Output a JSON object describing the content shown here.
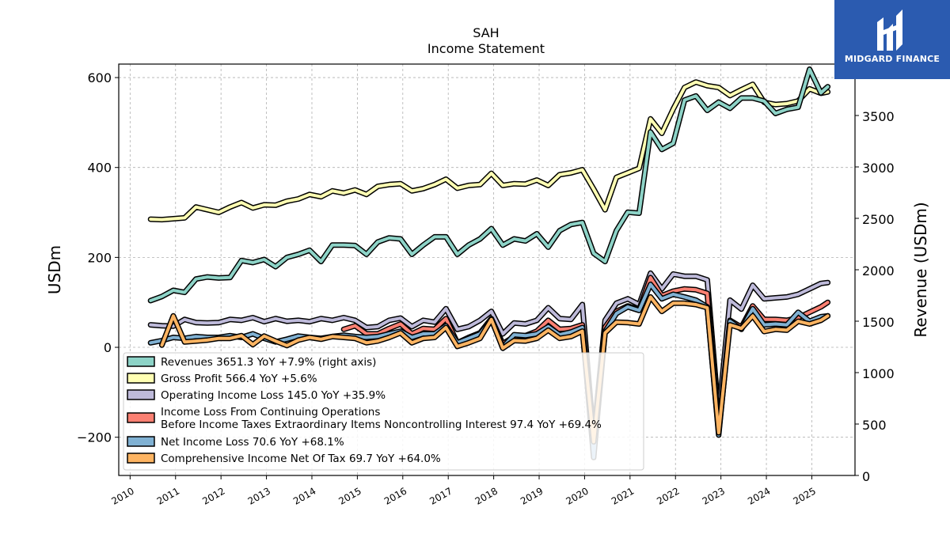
{
  "brand": {
    "name": "MIDGARD FINANCE"
  },
  "colors": {
    "revenues": "#8dd3c7",
    "gross_profit": "#ffffb3",
    "operating_income": "#bebada",
    "income_continuing": "#fb8072",
    "net_income": "#80b1d3",
    "comprehensive_income": "#fdb462"
  },
  "chart_data": {
    "type": "line",
    "title": "SAH",
    "subtitle": "Income Statement",
    "ylabel": "USDm",
    "ylabel_right": "Revenue (USDm)",
    "ylim": [
      -285,
      630
    ],
    "ylim_right": [
      0,
      4000
    ],
    "yticks": [
      -200,
      0,
      200,
      400,
      600
    ],
    "yticks_labels": [
      "−200",
      "0",
      "200",
      "400",
      "600"
    ],
    "yticks_right": [
      0,
      500,
      1000,
      1500,
      2000,
      2500,
      3000,
      3500
    ],
    "xlim": [
      2009.75,
      2025.95
    ],
    "xticks": [
      2010,
      2011,
      2012,
      2013,
      2014,
      2015,
      2016,
      2017,
      2018,
      2019,
      2020,
      2021,
      2022,
      2023,
      2024,
      2025
    ],
    "grid": true,
    "legend_position": "lower-left",
    "series": [
      {
        "key": "revenues",
        "name": "Revenues",
        "legend": "Revenues  3651.3 YoY +7.9% (right axis)",
        "axis": "right",
        "x": [
          2010.45,
          2010.7,
          2010.95,
          2011.2,
          2011.45,
          2011.7,
          2011.95,
          2012.2,
          2012.45,
          2012.7,
          2012.95,
          2013.2,
          2013.45,
          2013.7,
          2013.95,
          2014.2,
          2014.45,
          2014.7,
          2014.95,
          2015.2,
          2015.45,
          2015.7,
          2015.95,
          2016.2,
          2016.45,
          2016.7,
          2016.95,
          2017.2,
          2017.45,
          2017.7,
          2017.95,
          2018.2,
          2018.45,
          2018.7,
          2018.95,
          2019.2,
          2019.45,
          2019.7,
          2019.95,
          2020.2,
          2020.45,
          2020.7,
          2020.95,
          2021.2,
          2021.45,
          2021.7,
          2021.95,
          2022.2,
          2022.45,
          2022.7,
          2022.95,
          2023.2,
          2023.45,
          2023.7,
          2023.95,
          2024.2,
          2024.45,
          2024.7,
          2024.95,
          2025.2,
          2025.35
        ],
        "values": [
          1700,
          1740,
          1800,
          1780,
          1910,
          1930,
          1920,
          1925,
          2090,
          2070,
          2100,
          2030,
          2120,
          2150,
          2190,
          2080,
          2240,
          2240,
          2235,
          2150,
          2270,
          2310,
          2300,
          2150,
          2240,
          2320,
          2320,
          2150,
          2240,
          2300,
          2400,
          2240,
          2300,
          2280,
          2350,
          2220,
          2380,
          2440,
          2460,
          2160,
          2080,
          2380,
          2560,
          2550,
          3340,
          3170,
          3230,
          3650,
          3690,
          3550,
          3630,
          3570,
          3670,
          3670,
          3640,
          3520,
          3560,
          3580,
          3950,
          3720,
          3780
        ]
      },
      {
        "key": "gross_profit",
        "name": "Gross Profit",
        "legend": "Gross Profit  566.4 YoY +5.6%",
        "axis": "left",
        "x": [
          2010.45,
          2010.7,
          2010.95,
          2011.2,
          2011.45,
          2011.7,
          2011.95,
          2012.2,
          2012.45,
          2012.7,
          2012.95,
          2013.2,
          2013.45,
          2013.7,
          2013.95,
          2014.2,
          2014.45,
          2014.7,
          2014.95,
          2015.2,
          2015.45,
          2015.7,
          2015.95,
          2016.2,
          2016.45,
          2016.7,
          2016.95,
          2017.2,
          2017.45,
          2017.7,
          2017.95,
          2018.2,
          2018.45,
          2018.7,
          2018.95,
          2019.2,
          2019.45,
          2019.7,
          2019.95,
          2020.2,
          2020.45,
          2020.7,
          2020.95,
          2021.2,
          2021.45,
          2021.7,
          2021.95,
          2022.2,
          2022.45,
          2022.7,
          2022.95,
          2023.2,
          2023.45,
          2023.7,
          2023.95,
          2024.2,
          2024.45,
          2024.7,
          2024.95,
          2025.2,
          2025.35
        ],
        "values": [
          285,
          284,
          286,
          288,
          312,
          306,
          300,
          312,
          322,
          310,
          317,
          316,
          325,
          330,
          340,
          335,
          348,
          343,
          350,
          340,
          358,
          362,
          364,
          348,
          353,
          362,
          374,
          354,
          360,
          362,
          387,
          360,
          364,
          363,
          372,
          360,
          384,
          388,
          395,
          352,
          306,
          378,
          388,
          398,
          508,
          476,
          530,
          578,
          590,
          582,
          578,
          560,
          573,
          585,
          545,
          540,
          542,
          548,
          575,
          565,
          568
        ]
      },
      {
        "key": "operating_income",
        "name": "Operating Income Loss",
        "legend": "Operating Income Loss  145.0 YoY +35.9%",
        "axis": "left",
        "x": [
          2010.45,
          2010.7,
          2010.95,
          2011.2,
          2011.45,
          2011.7,
          2011.95,
          2012.2,
          2012.45,
          2012.7,
          2012.95,
          2013.2,
          2013.45,
          2013.7,
          2013.95,
          2014.2,
          2014.45,
          2014.7,
          2014.95,
          2015.2,
          2015.45,
          2015.7,
          2015.95,
          2016.2,
          2016.45,
          2016.7,
          2016.95,
          2017.2,
          2017.45,
          2017.7,
          2017.95,
          2018.2,
          2018.45,
          2018.7,
          2018.95,
          2019.2,
          2019.45,
          2019.7,
          2019.95,
          2020.2,
          2020.45,
          2020.7,
          2020.95,
          2021.2,
          2021.45,
          2021.7,
          2021.95,
          2022.2,
          2022.45,
          2022.7,
          2022.95,
          2023.2,
          2023.45,
          2023.7,
          2023.95,
          2024.2,
          2024.45,
          2024.7,
          2024.95,
          2025.2,
          2025.35
        ],
        "values": [
          50,
          48,
          47,
          62,
          55,
          54,
          55,
          62,
          60,
          66,
          57,
          64,
          58,
          60,
          57,
          64,
          60,
          66,
          60,
          44,
          46,
          60,
          65,
          46,
          60,
          56,
          86,
          40,
          46,
          60,
          80,
          30,
          54,
          52,
          60,
          88,
          64,
          62,
          95,
          -200,
          60,
          98,
          108,
          95,
          165,
          130,
          163,
          158,
          158,
          150,
          -150,
          105,
          85,
          138,
          108,
          110,
          112,
          118,
          130,
          142,
          144
        ]
      },
      {
        "key": "income_continuing",
        "name": "Income Loss From Continuing Operations",
        "legend": "Income Loss From Continuing Operations",
        "legend2": "Before Income Taxes Extraordinary Items Noncontrolling Interest  97.4 YoY +69.4%",
        "axis": "left",
        "x": [
          2014.7,
          2014.95,
          2015.2,
          2015.45,
          2015.7,
          2015.95,
          2016.2,
          2016.45,
          2016.7,
          2016.95,
          2017.2,
          2017.45,
          2017.7,
          2017.95,
          2018.2,
          2018.45,
          2018.7,
          2018.95,
          2019.2,
          2019.45,
          2019.7,
          2019.95,
          2020.2,
          2020.45,
          2020.7,
          2020.95,
          2021.2,
          2021.45,
          2021.7,
          2021.95,
          2022.2,
          2022.45,
          2022.7,
          2022.95,
          2023.2,
          2023.45,
          2023.7,
          2023.95,
          2024.2,
          2024.45,
          2024.7,
          2024.95,
          2025.2,
          2025.35
        ],
        "values": [
          40,
          48,
          30,
          30,
          42,
          52,
          30,
          42,
          40,
          64,
          10,
          22,
          32,
          64,
          8,
          24,
          26,
          36,
          60,
          40,
          42,
          50,
          -200,
          45,
          80,
          92,
          84,
          155,
          115,
          125,
          130,
          128,
          120,
          -180,
          60,
          45,
          92,
          62,
          62,
          60,
          66,
          78,
          90,
          100
        ]
      },
      {
        "key": "net_income",
        "name": "Net Income Loss",
        "legend": "Net Income Loss  70.6 YoY +68.1%",
        "axis": "left",
        "x": [
          2010.45,
          2010.7,
          2010.95,
          2011.2,
          2011.45,
          2011.7,
          2011.95,
          2012.2,
          2012.45,
          2012.7,
          2012.95,
          2013.2,
          2013.45,
          2013.7,
          2013.95,
          2014.2,
          2014.45,
          2014.7,
          2014.95,
          2015.2,
          2015.45,
          2015.7,
          2015.95,
          2016.2,
          2016.45,
          2016.7,
          2016.95,
          2017.2,
          2017.45,
          2017.7,
          2017.95,
          2018.2,
          2018.45,
          2018.7,
          2018.95,
          2019.2,
          2019.45,
          2019.7,
          2019.95,
          2020.2,
          2020.45,
          2020.7,
          2020.95,
          2021.2,
          2021.45,
          2021.7,
          2021.95,
          2022.2,
          2022.45,
          2022.7,
          2022.95,
          2023.2,
          2023.45,
          2023.7,
          2023.95,
          2024.2,
          2024.45,
          2024.7,
          2024.95,
          2025.2,
          2025.35
        ],
        "values": [
          10,
          15,
          22,
          20,
          24,
          22,
          22,
          26,
          22,
          30,
          20,
          12,
          18,
          25,
          22,
          20,
          24,
          27,
          24,
          22,
          24,
          30,
          36,
          22,
          30,
          30,
          48,
          10,
          20,
          30,
          62,
          0,
          28,
          26,
          30,
          46,
          28,
          34,
          44,
          -245,
          35,
          75,
          90,
          82,
          140,
          108,
          118,
          112,
          105,
          90,
          -195,
          58,
          40,
          86,
          50,
          52,
          50,
          78,
          58,
          68,
          70
        ]
      },
      {
        "key": "comprehensive_income",
        "name": "Comprehensive Income Net Of Tax",
        "legend": "Comprehensive Income Net Of Tax  69.7 YoY +64.0%",
        "axis": "left",
        "x": [
          2010.7,
          2010.95,
          2011.2,
          2011.45,
          2011.7,
          2011.95,
          2012.2,
          2012.45,
          2012.7,
          2012.95,
          2013.2,
          2013.45,
          2013.7,
          2013.95,
          2014.2,
          2014.45,
          2014.7,
          2014.95,
          2015.2,
          2015.45,
          2015.7,
          2015.95,
          2016.2,
          2016.45,
          2016.7,
          2016.95,
          2017.2,
          2017.45,
          2017.7,
          2017.95,
          2018.2,
          2018.45,
          2018.7,
          2018.95,
          2019.2,
          2019.45,
          2019.7,
          2019.95,
          2020.2,
          2020.45,
          2020.7,
          2020.95,
          2021.2,
          2021.45,
          2021.7,
          2021.95,
          2022.2,
          2022.45,
          2022.7,
          2022.95,
          2023.2,
          2023.45,
          2023.7,
          2023.95,
          2024.2,
          2024.45,
          2024.7,
          2024.95,
          2025.2,
          2025.35
        ],
        "values": [
          5,
          70,
          12,
          14,
          16,
          20,
          20,
          26,
          6,
          25,
          14,
          4,
          16,
          22,
          18,
          24,
          22,
          20,
          10,
          14,
          22,
          32,
          10,
          20,
          22,
          44,
          2,
          10,
          20,
          62,
          -2,
          15,
          14,
          20,
          38,
          20,
          24,
          36,
          -210,
          32,
          56,
          55,
          52,
          112,
          80,
          98,
          98,
          95,
          88,
          -190,
          50,
          42,
          70,
          35,
          40,
          38,
          58,
          52,
          60,
          70
        ]
      }
    ]
  }
}
